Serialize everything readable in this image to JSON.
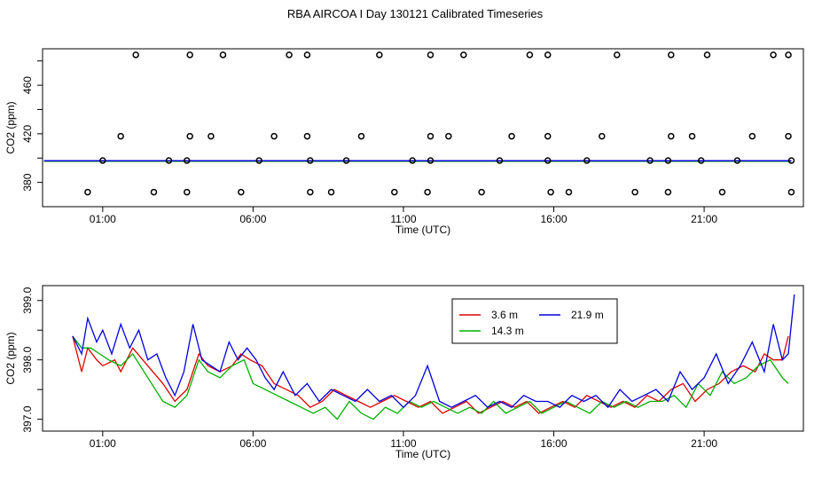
{
  "title": "RBA AIRCOA I  Day 130121  Calibrated Timeseries",
  "chart_data": [
    {
      "type": "scatter",
      "xlabel": "Time (UTC)",
      "ylabel": "CO2 (ppm)",
      "x_range_hours": [
        23.0,
        48.3
      ],
      "ylim": [
        360,
        490
      ],
      "x_ticks": [
        {
          "h": 25,
          "label": "01:00"
        },
        {
          "h": 30,
          "label": "06:00"
        },
        {
          "h": 35,
          "label": "11:00"
        },
        {
          "h": 40,
          "label": "16:00"
        },
        {
          "h": 45,
          "label": "21:00"
        }
      ],
      "y_ticks": [
        {
          "v": 380,
          "label": "380"
        },
        {
          "v": 420,
          "label": "420"
        },
        {
          "v": 460,
          "label": "460"
        }
      ],
      "points_high": {
        "y": 485,
        "x": [
          26.1,
          27.9,
          29.0,
          31.2,
          31.8,
          34.2,
          35.9,
          37.0,
          39.2,
          39.8,
          42.1,
          43.9,
          45.1,
          47.3,
          47.8
        ]
      },
      "points_mid": {
        "y": 418,
        "x": [
          25.6,
          27.9,
          28.6,
          30.7,
          31.8,
          33.6,
          35.9,
          36.5,
          38.6,
          39.8,
          41.6,
          43.9,
          44.6,
          46.6,
          47.8
        ]
      },
      "points_near": {
        "y": 398,
        "x": [
          25.0,
          27.2,
          27.8,
          30.2,
          31.9,
          33.1,
          35.3,
          35.9,
          38.2,
          39.8,
          41.1,
          43.2,
          43.8,
          44.9,
          46.1,
          47.9
        ]
      },
      "points_low": {
        "y": 372,
        "x": [
          24.5,
          26.7,
          27.8,
          29.6,
          31.9,
          32.6,
          34.7,
          35.8,
          37.6,
          39.9,
          40.5,
          42.7,
          43.8,
          45.6,
          47.9
        ]
      },
      "series": [
        {
          "name": "3.6 m",
          "color": "#e00000",
          "start": 23.05,
          "end": 47.9,
          "value": 397.5
        },
        {
          "name": "14.3 m",
          "color": "#00b000",
          "start": 23.05,
          "end": 47.9,
          "value": 397.4
        },
        {
          "name": "21.9 m",
          "color": "#0000e0",
          "start": 23.05,
          "end": 47.9,
          "value": 397.8
        }
      ]
    },
    {
      "type": "line",
      "xlabel": "Time (UTC)",
      "ylabel": "CO2 (ppm)",
      "x_range_hours": [
        23.0,
        48.3
      ],
      "ylim": [
        396.8,
        399.25
      ],
      "x_ticks": [
        {
          "h": 25,
          "label": "01:00"
        },
        {
          "h": 30,
          "label": "06:00"
        },
        {
          "h": 35,
          "label": "11:00"
        },
        {
          "h": 40,
          "label": "16:00"
        },
        {
          "h": 45,
          "label": "21:00"
        }
      ],
      "y_ticks": [
        {
          "v": 397.0,
          "label": "397.0"
        },
        {
          "v": 398.0,
          "label": "398.0"
        },
        {
          "v": 399.0,
          "label": "399.0"
        }
      ],
      "legend": {
        "position": "top-center",
        "entries": [
          {
            "label": "3.6 m",
            "color": "#e00000"
          },
          {
            "label": "21.9 m",
            "color": "#0000e0"
          },
          {
            "label": "14.3 m",
            "color": "#00b000"
          }
        ]
      },
      "series": [
        {
          "name": "3.6 m",
          "color": "#e00000",
          "x": [
            24.0,
            24.3,
            24.5,
            24.8,
            25.0,
            25.4,
            25.6,
            26.0,
            26.5,
            27.0,
            27.4,
            27.8,
            28.2,
            28.5,
            28.9,
            29.3,
            29.6,
            29.9,
            30.3,
            30.7,
            31.1,
            31.5,
            31.9,
            32.3,
            32.7,
            33.1,
            33.5,
            33.9,
            34.3,
            34.7,
            35.1,
            35.5,
            35.9,
            36.3,
            36.7,
            37.1,
            37.5,
            37.9,
            38.3,
            38.7,
            39.1,
            39.5,
            39.9,
            40.3,
            40.7,
            41.1,
            41.5,
            41.9,
            42.3,
            42.7,
            43.1,
            43.5,
            43.9,
            44.3,
            44.7,
            45.1,
            45.5,
            45.9,
            46.3,
            46.7,
            47.0,
            47.3,
            47.6,
            47.8
          ],
          "y": [
            398.4,
            397.8,
            398.2,
            398.0,
            397.9,
            398.0,
            397.8,
            398.2,
            397.9,
            397.6,
            397.3,
            397.5,
            398.1,
            397.9,
            397.8,
            397.9,
            398.1,
            398.0,
            397.9,
            397.6,
            397.5,
            397.4,
            397.2,
            397.3,
            397.5,
            397.4,
            397.3,
            397.2,
            397.3,
            397.4,
            397.3,
            397.2,
            397.3,
            397.1,
            397.2,
            397.3,
            397.1,
            397.2,
            397.3,
            397.2,
            397.3,
            397.1,
            397.2,
            397.3,
            397.2,
            397.4,
            397.3,
            397.2,
            397.3,
            397.2,
            397.4,
            397.3,
            397.5,
            397.6,
            397.3,
            397.5,
            397.6,
            397.8,
            397.9,
            397.8,
            398.1,
            398.0,
            398.0,
            398.4
          ]
        },
        {
          "name": "14.3 m",
          "color": "#00b000",
          "x": [
            24.0,
            24.3,
            24.6,
            24.9,
            25.2,
            25.6,
            26.0,
            26.5,
            27.0,
            27.4,
            27.8,
            28.2,
            28.5,
            28.9,
            29.3,
            29.7,
            30.0,
            30.4,
            30.8,
            31.2,
            31.6,
            32.0,
            32.4,
            32.8,
            33.2,
            33.6,
            34.0,
            34.4,
            34.8,
            35.2,
            35.6,
            36.0,
            36.4,
            36.8,
            37.2,
            37.6,
            38.0,
            38.4,
            38.8,
            39.2,
            39.6,
            40.0,
            40.4,
            40.8,
            41.2,
            41.6,
            42.0,
            42.4,
            42.8,
            43.2,
            43.6,
            44.0,
            44.4,
            44.8,
            45.2,
            45.6,
            46.0,
            46.4,
            46.8,
            47.2,
            47.6,
            47.8
          ],
          "y": [
            398.4,
            398.2,
            398.2,
            398.1,
            398.0,
            397.9,
            398.1,
            397.7,
            397.3,
            397.2,
            397.4,
            398.0,
            397.8,
            397.7,
            397.9,
            398.0,
            397.6,
            397.5,
            397.4,
            397.3,
            397.2,
            397.1,
            397.2,
            397.0,
            397.3,
            397.1,
            397.0,
            397.2,
            397.1,
            397.3,
            397.2,
            397.3,
            397.2,
            397.1,
            397.2,
            397.1,
            397.3,
            397.1,
            397.2,
            397.3,
            397.1,
            397.2,
            397.3,
            397.2,
            397.1,
            397.3,
            397.2,
            397.3,
            397.2,
            397.3,
            397.3,
            397.4,
            397.2,
            397.6,
            397.4,
            397.8,
            397.6,
            397.7,
            397.9,
            398.0,
            397.7,
            397.6
          ]
        },
        {
          "name": "21.9 m",
          "color": "#0000e0",
          "x": [
            24.0,
            24.3,
            24.5,
            24.8,
            25.0,
            25.3,
            25.6,
            25.9,
            26.2,
            26.5,
            26.8,
            27.1,
            27.4,
            27.7,
            28.0,
            28.3,
            28.6,
            28.9,
            29.2,
            29.5,
            29.8,
            30.1,
            30.4,
            30.7,
            31.0,
            31.4,
            31.8,
            32.2,
            32.6,
            33.0,
            33.4,
            33.8,
            34.2,
            34.6,
            35.0,
            35.4,
            35.8,
            36.2,
            36.6,
            37.0,
            37.4,
            37.8,
            38.2,
            38.6,
            39.0,
            39.4,
            39.8,
            40.2,
            40.6,
            41.0,
            41.4,
            41.8,
            42.2,
            42.6,
            43.0,
            43.4,
            43.8,
            44.2,
            44.6,
            45.0,
            45.4,
            45.8,
            46.2,
            46.6,
            47.0,
            47.3,
            47.6,
            47.8,
            48.0
          ],
          "y": [
            398.4,
            398.1,
            398.7,
            398.3,
            398.5,
            398.1,
            398.6,
            398.2,
            398.5,
            398.0,
            398.1,
            397.7,
            397.4,
            397.8,
            398.6,
            398.0,
            397.9,
            397.8,
            398.3,
            398.0,
            398.2,
            398.0,
            397.7,
            397.5,
            397.8,
            397.4,
            397.6,
            397.3,
            397.5,
            397.4,
            397.3,
            397.5,
            397.3,
            397.4,
            397.2,
            397.4,
            397.9,
            397.3,
            397.2,
            397.3,
            397.4,
            397.2,
            397.3,
            397.2,
            397.4,
            397.3,
            397.3,
            397.2,
            397.4,
            397.3,
            397.4,
            397.2,
            397.5,
            397.3,
            397.4,
            397.5,
            397.3,
            397.8,
            397.5,
            397.7,
            398.1,
            397.6,
            397.9,
            398.3,
            397.8,
            398.6,
            398.0,
            398.1,
            399.1
          ]
        }
      ]
    }
  ]
}
